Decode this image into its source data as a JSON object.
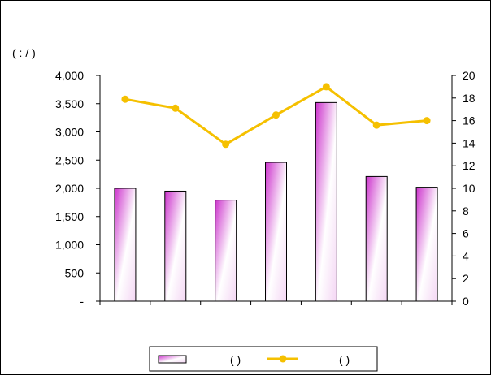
{
  "chart_data": {
    "type": "bar",
    "categories": [
      "",
      "",
      "",
      "",
      "",
      "",
      ""
    ],
    "series": [
      {
        "axis": "left",
        "chart": "bar",
        "values": [
          2000,
          1950,
          1790,
          2460,
          3520,
          2210,
          2020
        ],
        "color": "#cc33cc"
      },
      {
        "axis": "right",
        "chart": "line",
        "values": [
          17.9,
          17.1,
          13.9,
          16.5,
          19.0,
          15.6,
          16.0
        ],
        "color": "#f5c000"
      }
    ],
    "y_left": {
      "min": 0,
      "max": 4000,
      "step": 500,
      "tick_labels": [
        "-",
        "500",
        "1,000",
        "1,500",
        "2,000",
        "2,500",
        "3,000",
        "3,500",
        "4,000"
      ]
    },
    "y_right": {
      "min": 0,
      "max": 20,
      "step": 2,
      "tick_labels": [
        "0",
        "2",
        "4",
        "6",
        "8",
        "10",
        "12",
        "14",
        "16",
        "18",
        "20"
      ]
    },
    "unit_label": "(    :    /  )",
    "legend": {
      "placement": "bottom",
      "bar_label": "(    )",
      "line_label": "(    )"
    },
    "grid": false
  }
}
